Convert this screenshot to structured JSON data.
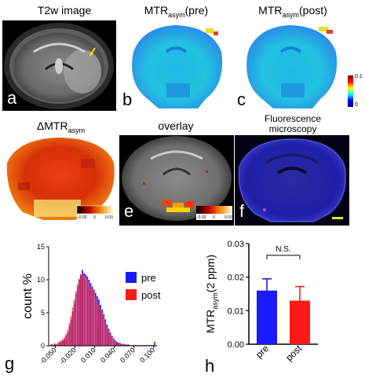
{
  "panels": {
    "a": {
      "letter": "a",
      "title": "T2w image"
    },
    "b": {
      "letter": "b",
      "title_main": "MTR",
      "title_sub": "asym",
      "title_tail": "(pre)"
    },
    "c": {
      "letter": "c",
      "title_main": "MTR",
      "title_sub": "asym",
      "title_tail": "(post)"
    },
    "d": {
      "letter": "d",
      "title_pre": "ΔMTR",
      "title_sub": "asym"
    },
    "e": {
      "letter": "e",
      "title": "overlay"
    },
    "f": {
      "letter": "f",
      "title_line1": "Fluorescence",
      "title_line2": "microscopy"
    },
    "g": {
      "letter": "g"
    },
    "h": {
      "letter": "h"
    }
  },
  "colorbar_bc": {
    "max": "0.1",
    "min": "0"
  },
  "colorbar_de": {
    "min": "-0.03",
    "mid": "0",
    "max": "0.03"
  },
  "colors": {
    "pre": "#1a1aff",
    "post": "#ff1a1a",
    "overlap": "#9a2a9a"
  },
  "chart_data": [
    {
      "type": "bar",
      "panel": "g",
      "ylabel": "count %",
      "ylim": [
        0,
        15
      ],
      "yticks": [
        "0",
        "5",
        "10",
        "15"
      ],
      "xticks": [
        "-0.050",
        "-0.020",
        "0.010",
        "0.040",
        "0.070",
        "0.100"
      ],
      "xlim": [
        -0.06,
        0.105
      ],
      "bin_width": 0.0025,
      "series": [
        {
          "name": "pre",
          "x_start": -0.057,
          "values": [
            0.2,
            0.1,
            0.3,
            0.2,
            0.3,
            0.5,
            0.6,
            0.8,
            1.0,
            1.5,
            2.0,
            3.0,
            4.0,
            5.2,
            6.5,
            7.8,
            9.0,
            10.0,
            10.8,
            11.5,
            11.0,
            10.8,
            10.5,
            10.0,
            9.5,
            9.0,
            8.5,
            8.0,
            7.5,
            7.0,
            6.2,
            5.5,
            4.8,
            4.0,
            3.2,
            2.6,
            2.0,
            1.5,
            1.1,
            0.8,
            0.6,
            0.5,
            0.4,
            0.3,
            0.3,
            0.2,
            0.2,
            0.2,
            0.1,
            0.1,
            0.1,
            0.1,
            0.1,
            0.1,
            0.1,
            0.1,
            0.1,
            0.1,
            0.1,
            0.1,
            0.1,
            0.1,
            0.1,
            0.6
          ]
        },
        {
          "name": "post",
          "x_start": -0.057,
          "values": [
            0.3,
            0.2,
            0.4,
            0.2,
            0.5,
            0.7,
            0.8,
            1.0,
            1.3,
            1.8,
            2.4,
            3.4,
            4.5,
            5.8,
            7.0,
            8.3,
            9.4,
            10.2,
            10.7,
            11.0,
            10.6,
            10.3,
            10.0,
            9.6,
            9.0,
            8.6,
            8.0,
            7.4,
            6.9,
            6.3,
            5.6,
            4.9,
            4.2,
            3.5,
            2.9,
            2.3,
            1.8,
            1.3,
            1.0,
            0.7,
            0.5,
            0.4,
            0.3,
            0.3,
            0.2,
            0.2,
            0.1,
            0.1,
            0.1,
            0.1,
            0.1,
            0.1,
            0.1,
            0.1,
            0.1,
            0.1,
            0.1,
            0.1,
            0.1,
            0.1,
            0.1,
            0.1,
            0.1,
            0.4
          ]
        }
      ]
    },
    {
      "type": "bar",
      "panel": "h",
      "ylabel_main": "MTR",
      "ylabel_sub": "asym",
      "ylabel_tail": "(2 ppm)",
      "ylim": [
        0,
        0.03
      ],
      "yticks": [
        "0.00",
        "0.01",
        "0.02",
        "0.03"
      ],
      "categories": [
        "pre",
        "post"
      ],
      "values": [
        0.016,
        0.013
      ],
      "errors": [
        0.0035,
        0.0042
      ],
      "annotation": "N.S."
    }
  ]
}
